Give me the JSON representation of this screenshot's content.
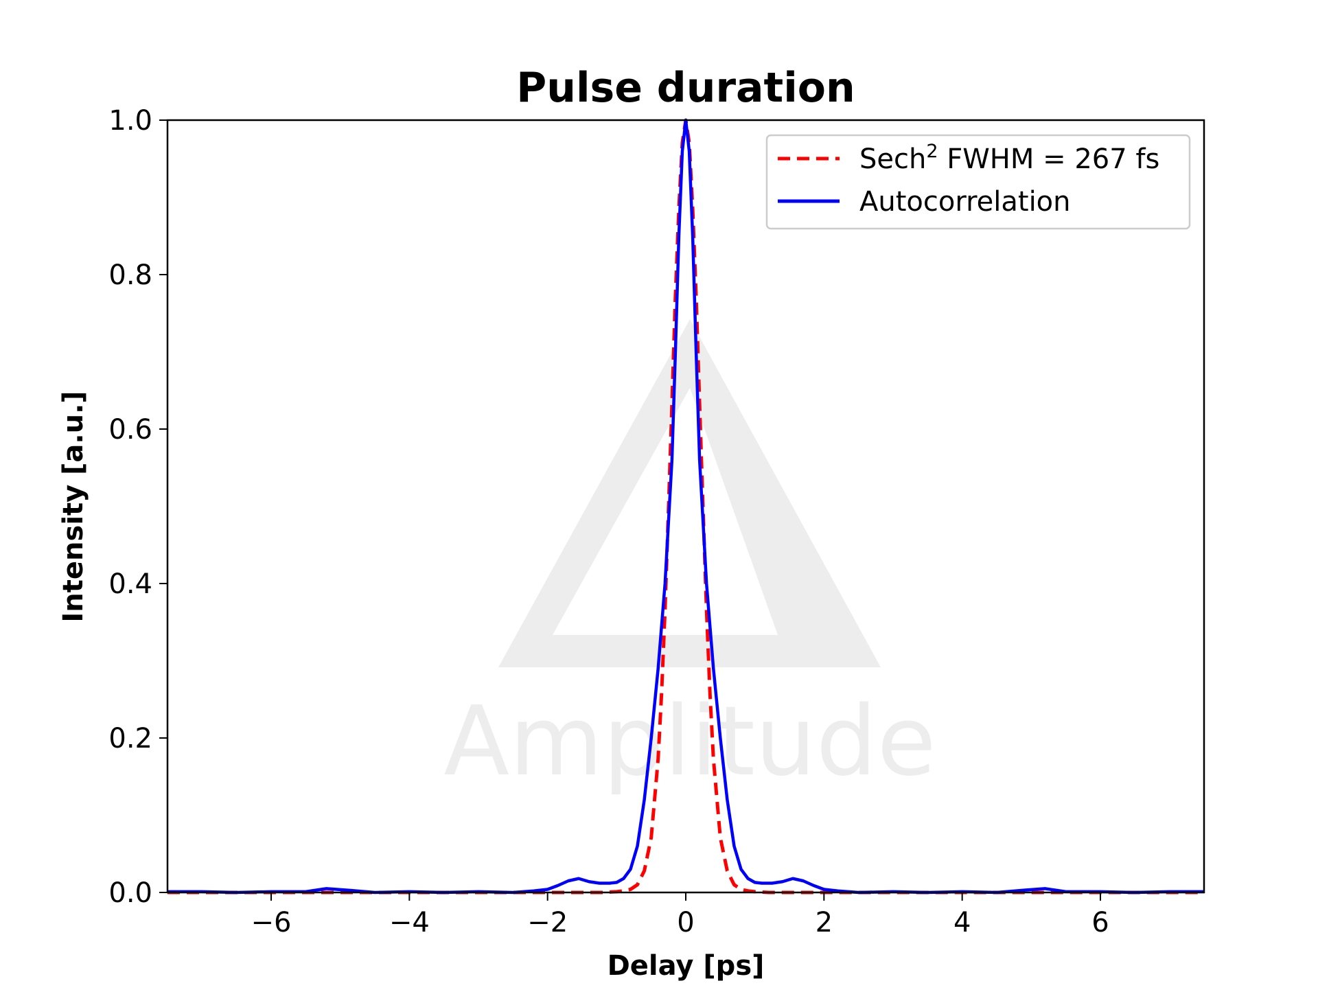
{
  "watermark": {
    "text": "Amplitude",
    "color": "#ededed"
  },
  "chart_data": {
    "type": "line",
    "title": "Pulse duration",
    "xlabel": "Delay [ps]",
    "ylabel": "Intensity [a.u.]",
    "xlim": [
      -7.5,
      7.5
    ],
    "ylim": [
      0,
      1.0
    ],
    "xticks": [
      -6,
      -4,
      -2,
      0,
      2,
      4,
      6
    ],
    "xtick_labels": [
      "−6",
      "−4",
      "−2",
      "0",
      "2",
      "4",
      "6"
    ],
    "yticks": [
      0,
      0.2,
      0.4,
      0.6,
      0.8,
      1.0
    ],
    "ytick_labels": [
      "0.0",
      "0.2",
      "0.4",
      "0.6",
      "0.8",
      "1.0"
    ],
    "grid": false,
    "legend_position": "top-right",
    "series": [
      {
        "name": "Sech² FWHM = 267 fs",
        "legend_main": "Sech",
        "legend_sup": "2",
        "legend_rest": " FWHM = 267 fs",
        "color": "#ff0000",
        "style": "dashed",
        "x": [
          -7.5,
          -1.2,
          -1.0,
          -0.9,
          -0.8,
          -0.7,
          -0.6,
          -0.5,
          -0.4,
          -0.35,
          -0.3,
          -0.25,
          -0.2,
          -0.15,
          -0.1,
          -0.05,
          0,
          0.05,
          0.1,
          0.15,
          0.2,
          0.25,
          0.3,
          0.35,
          0.4,
          0.5,
          0.6,
          0.7,
          0.8,
          0.9,
          1.0,
          1.2,
          7.5
        ],
        "y": [
          0,
          0,
          0.001,
          0.002,
          0.004,
          0.01,
          0.028,
          0.071,
          0.173,
          0.258,
          0.366,
          0.497,
          0.633,
          0.772,
          0.886,
          0.971,
          1.0,
          0.971,
          0.886,
          0.772,
          0.633,
          0.497,
          0.366,
          0.258,
          0.173,
          0.071,
          0.028,
          0.01,
          0.004,
          0.002,
          0.001,
          0,
          0
        ]
      },
      {
        "name": "Autocorrelation",
        "color": "#0000ff",
        "style": "solid",
        "x": [
          -7.5,
          -7.0,
          -6.5,
          -6.0,
          -5.5,
          -5.2,
          -4.9,
          -4.5,
          -4.0,
          -3.5,
          -3.0,
          -2.5,
          -2.2,
          -2.0,
          -1.85,
          -1.7,
          -1.55,
          -1.4,
          -1.25,
          -1.1,
          -1.0,
          -0.9,
          -0.8,
          -0.7,
          -0.6,
          -0.5,
          -0.4,
          -0.3,
          -0.2,
          -0.15,
          -0.1,
          -0.05,
          0,
          0.05,
          0.1,
          0.15,
          0.2,
          0.3,
          0.4,
          0.5,
          0.6,
          0.7,
          0.8,
          0.9,
          1.0,
          1.1,
          1.25,
          1.4,
          1.55,
          1.7,
          1.85,
          2.0,
          2.2,
          2.5,
          3.0,
          3.5,
          4.0,
          4.5,
          4.9,
          5.2,
          5.5,
          6.0,
          6.5,
          7.0,
          7.5
        ],
        "y": [
          0.001,
          0.001,
          0.0,
          0.001,
          0.001,
          0.005,
          0.003,
          0.0,
          0.001,
          0.0,
          0.001,
          0.0,
          0.002,
          0.004,
          0.009,
          0.015,
          0.018,
          0.014,
          0.012,
          0.012,
          0.013,
          0.018,
          0.03,
          0.06,
          0.12,
          0.2,
          0.29,
          0.4,
          0.56,
          0.7,
          0.85,
          0.96,
          1.0,
          0.96,
          0.85,
          0.7,
          0.56,
          0.4,
          0.29,
          0.2,
          0.12,
          0.06,
          0.03,
          0.018,
          0.013,
          0.012,
          0.012,
          0.014,
          0.018,
          0.015,
          0.009,
          0.004,
          0.002,
          0.0,
          0.001,
          0.0,
          0.001,
          0.0,
          0.003,
          0.005,
          0.001,
          0.001,
          0.0,
          0.001,
          0.001
        ]
      }
    ]
  }
}
